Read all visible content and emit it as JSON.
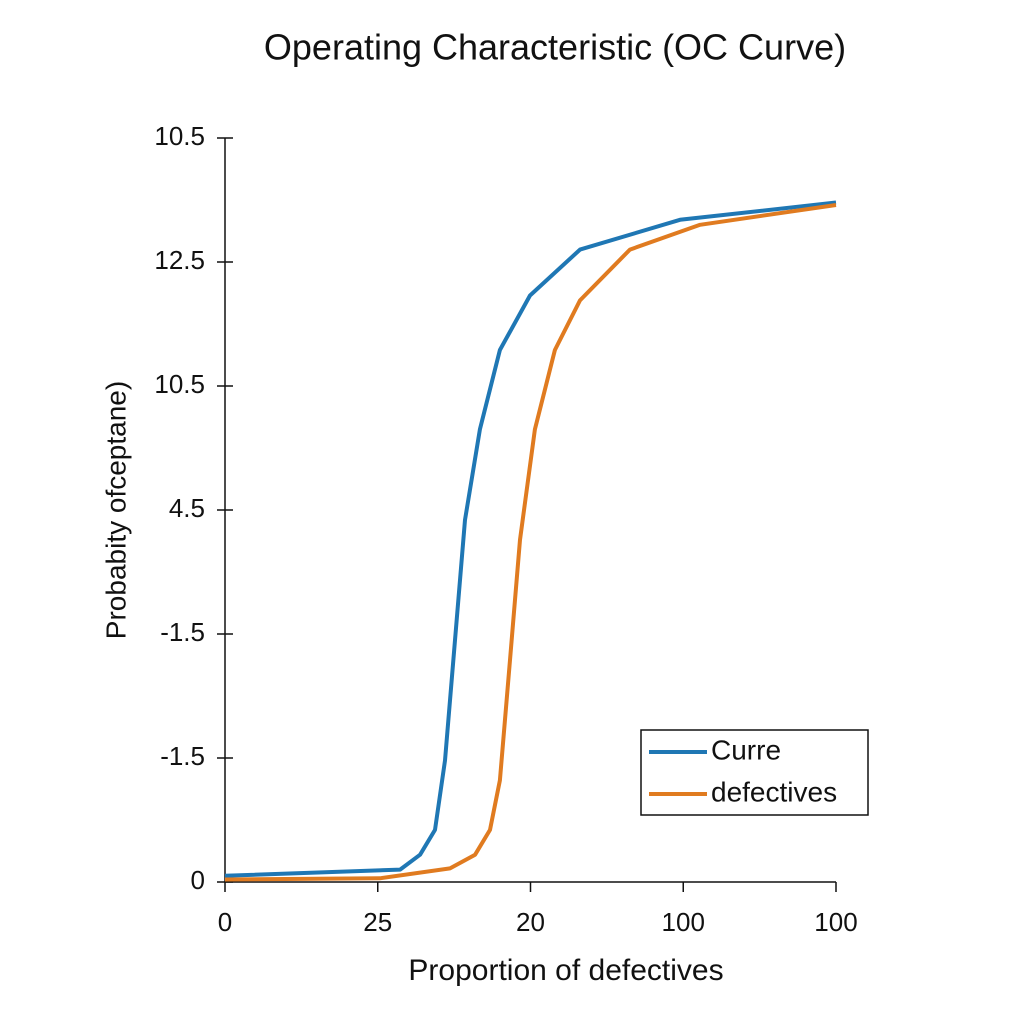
{
  "chart_data": {
    "type": "line",
    "title": "Operating Characteristic (OC Curve)",
    "x_label": "Proportion of defectives",
    "y_label": "Probabity ofceptane)",
    "xlim": [
      0,
      4
    ],
    "xticks": [
      {
        "value": 0,
        "label": "0"
      },
      {
        "value": 1,
        "label": "25"
      },
      {
        "value": 2,
        "label": "20"
      },
      {
        "value": 3,
        "label": "100"
      },
      {
        "value": 4,
        "label": "100"
      }
    ],
    "ylim": [
      0,
      6
    ],
    "yticks": [
      {
        "value": 6,
        "label": "10.5"
      },
      {
        "value": 5,
        "label": "12.5"
      },
      {
        "value": 4,
        "label": "10.5"
      },
      {
        "value": 3,
        "label": "4.5"
      },
      {
        "value": 2,
        "label": "-1.5"
      },
      {
        "value": 1,
        "label": "-1.5"
      },
      {
        "value": 0,
        "label": "0"
      }
    ],
    "legend_position": "lower right",
    "series": [
      {
        "name": "Curre",
        "color": "#1f77b4",
        "x": [
          0,
          1.146,
          1.277,
          1.375,
          1.44,
          1.506,
          1.571,
          1.669,
          1.8,
          1.997,
          2.324,
          2.979,
          4
        ],
        "values": [
          0.05,
          0.1,
          0.22,
          0.42,
          0.98,
          1.95,
          2.92,
          3.65,
          4.29,
          4.73,
          5.1,
          5.34,
          5.48
        ]
      },
      {
        "name": "defectives",
        "color": "#e07b20",
        "x": [
          0,
          1.015,
          1.473,
          1.637,
          1.735,
          1.8,
          1.866,
          1.931,
          2.029,
          2.16,
          2.324,
          2.651,
          3.11,
          4
        ],
        "values": [
          0.02,
          0.03,
          0.11,
          0.22,
          0.42,
          0.82,
          1.79,
          2.76,
          3.65,
          4.29,
          4.69,
          5.1,
          5.3,
          5.46
        ]
      }
    ]
  }
}
